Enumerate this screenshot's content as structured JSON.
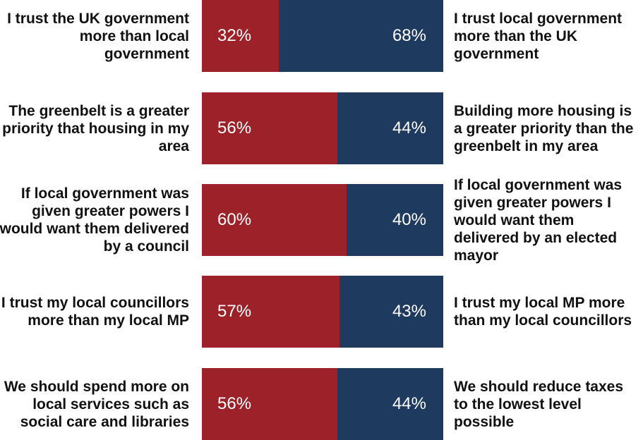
{
  "chart_data": {
    "type": "bar",
    "orientation": "horizontal",
    "stacked": true,
    "xlim": [
      0,
      100
    ],
    "colors": {
      "left": "#9c2129",
      "right": "#1e3a5f"
    },
    "rows": [
      {
        "left_label": "I trust the UK government more than local government",
        "right_label": "I trust local government more than the UK government",
        "left_value": 32,
        "right_value": 68,
        "left_text": "32%",
        "right_text": "68%"
      },
      {
        "left_label": "The greenbelt is a greater priority that housing in my area",
        "right_label": "Building more housing is a greater priority than the greenbelt in my area",
        "left_value": 56,
        "right_value": 44,
        "left_text": "56%",
        "right_text": "44%"
      },
      {
        "left_label": "If local government was given greater powers I would want them delivered by a council",
        "right_label": "If local government was given greater powers I would want them delivered by an elected mayor",
        "left_value": 60,
        "right_value": 40,
        "left_text": "60%",
        "right_text": "40%"
      },
      {
        "left_label": "I trust my local councillors more than my local MP",
        "right_label": "I trust my local MP more than my local councillors",
        "left_value": 57,
        "right_value": 43,
        "left_text": "57%",
        "right_text": "43%"
      },
      {
        "left_label": "We should spend more on local services such as social care and libraries",
        "right_label": "We should reduce taxes to the lowest level possible",
        "left_value": 56,
        "right_value": 44,
        "left_text": "56%",
        "right_text": "44%"
      }
    ]
  }
}
